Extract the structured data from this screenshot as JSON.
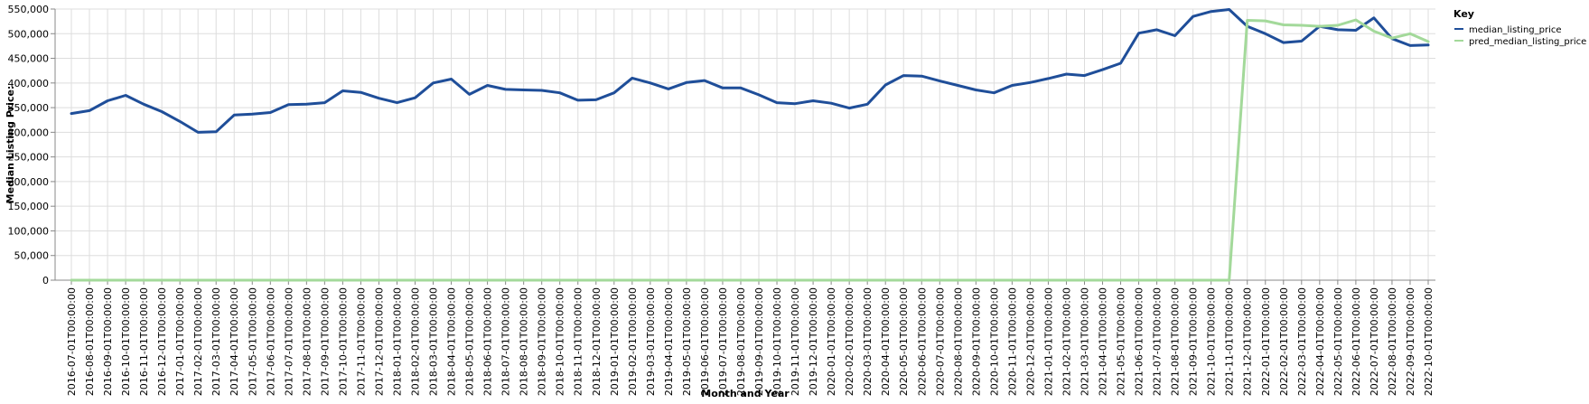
{
  "chart_data": {
    "type": "line",
    "xlabel": "Month and Year",
    "ylabel": "Median Listing Price:",
    "ylim": [
      0,
      550000
    ],
    "yticks": [
      "0",
      "50,000",
      "100,000",
      "150,000",
      "200,000",
      "250,000",
      "300,000",
      "350,000",
      "400,000",
      "450,000",
      "500,000",
      "550,000"
    ],
    "grid": true,
    "legend_title": "Key",
    "legend_position": "top-right",
    "x": [
      "2016-07-01T00:00:00",
      "2016-08-01T00:00:00",
      "2016-09-01T00:00:00",
      "2016-10-01T00:00:00",
      "2016-11-01T00:00:00",
      "2016-12-01T00:00:00",
      "2017-01-01T00:00:00",
      "2017-02-01T00:00:00",
      "2017-03-01T00:00:00",
      "2017-04-01T00:00:00",
      "2017-05-01T00:00:00",
      "2017-06-01T00:00:00",
      "2017-07-01T00:00:00",
      "2017-08-01T00:00:00",
      "2017-09-01T00:00:00",
      "2017-10-01T00:00:00",
      "2017-11-01T00:00:00",
      "2017-12-01T00:00:00",
      "2018-01-01T00:00:00",
      "2018-02-01T00:00:00",
      "2018-03-01T00:00:00",
      "2018-04-01T00:00:00",
      "2018-05-01T00:00:00",
      "2018-06-01T00:00:00",
      "2018-07-01T00:00:00",
      "2018-08-01T00:00:00",
      "2018-09-01T00:00:00",
      "2018-10-01T00:00:00",
      "2018-11-01T00:00:00",
      "2018-12-01T00:00:00",
      "2019-01-01T00:00:00",
      "2019-02-01T00:00:00",
      "2019-03-01T00:00:00",
      "2019-04-01T00:00:00",
      "2019-05-01T00:00:00",
      "2019-06-01T00:00:00",
      "2019-07-01T00:00:00",
      "2019-08-01T00:00:00",
      "2019-09-01T00:00:00",
      "2019-10-01T00:00:00",
      "2019-11-01T00:00:00",
      "2019-12-01T00:00:00",
      "2020-01-01T00:00:00",
      "2020-02-01T00:00:00",
      "2020-03-01T00:00:00",
      "2020-04-01T00:00:00",
      "2020-05-01T00:00:00",
      "2020-06-01T00:00:00",
      "2020-07-01T00:00:00",
      "2020-08-01T00:00:00",
      "2020-09-01T00:00:00",
      "2020-10-01T00:00:00",
      "2020-11-01T00:00:00",
      "2020-12-01T00:00:00",
      "2021-01-01T00:00:00",
      "2021-02-01T00:00:00",
      "2021-03-01T00:00:00",
      "2021-04-01T00:00:00",
      "2021-05-01T00:00:00",
      "2021-06-01T00:00:00",
      "2021-07-01T00:00:00",
      "2021-08-01T00:00:00",
      "2021-09-01T00:00:00",
      "2021-10-01T00:00:00",
      "2021-11-01T00:00:00",
      "2021-12-01T00:00:00",
      "2022-01-01T00:00:00",
      "2022-02-01T00:00:00",
      "2022-03-01T00:00:00",
      "2022-04-01T00:00:00",
      "2022-05-01T00:00:00",
      "2022-06-01T00:00:00",
      "2022-07-01T00:00:00",
      "2022-08-01T00:00:00",
      "2022-09-01T00:00:00",
      "2022-10-01T00:00:00"
    ],
    "series": [
      {
        "name": "median_listing_price",
        "color": "#1f4e99",
        "values": [
          338000,
          344000,
          364000,
          375000,
          357000,
          342000,
          322000,
          300000,
          301000,
          335000,
          337000,
          340000,
          356000,
          357000,
          360000,
          384000,
          381000,
          369000,
          360000,
          370000,
          400000,
          408000,
          377000,
          395000,
          387000,
          386000,
          385000,
          380000,
          365000,
          366000,
          380000,
          410000,
          400000,
          388000,
          401000,
          405000,
          390000,
          390000,
          376000,
          360000,
          358000,
          364000,
          359000,
          349000,
          357000,
          396000,
          415000,
          414000,
          404000,
          395000,
          386000,
          380000,
          395000,
          401000,
          409000,
          418000,
          415000,
          427000,
          440000,
          501000,
          508000,
          496000,
          535000,
          545000,
          549000,
          515000,
          500000,
          482000,
          485000,
          515000,
          508000,
          507000,
          532000,
          490000,
          476000,
          477000
        ]
      },
      {
        "name": "pred_median_listing_price",
        "color": "#a3d99a",
        "values": [
          0,
          0,
          0,
          0,
          0,
          0,
          0,
          0,
          0,
          0,
          0,
          0,
          0,
          0,
          0,
          0,
          0,
          0,
          0,
          0,
          0,
          0,
          0,
          0,
          0,
          0,
          0,
          0,
          0,
          0,
          0,
          0,
          0,
          0,
          0,
          0,
          0,
          0,
          0,
          0,
          0,
          0,
          0,
          0,
          0,
          0,
          0,
          0,
          0,
          0,
          0,
          0,
          0,
          0,
          0,
          0,
          0,
          0,
          0,
          0,
          0,
          0,
          0,
          0,
          0,
          527000,
          526000,
          518000,
          517000,
          515000,
          517000,
          528000,
          505000,
          491000,
          500000,
          484000
        ]
      }
    ]
  }
}
